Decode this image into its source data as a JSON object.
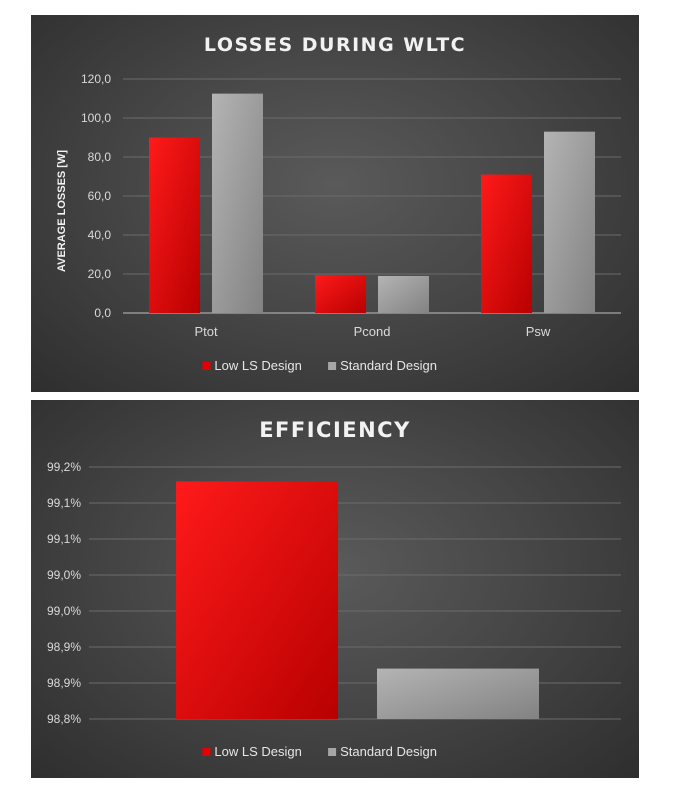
{
  "colors": {
    "low_ls": "#e60000",
    "standard": "#a6a6a6",
    "background": "#404040",
    "grid": "#6b6b6b"
  },
  "chart_data": [
    {
      "type": "bar",
      "title": "LOSSES DURING WLTC",
      "xlabel": "",
      "ylabel": "AVERAGE LOSSES [W]",
      "categories": [
        "Ptot",
        "Pcond",
        "Psw"
      ],
      "series": [
        {
          "name": "Low LS Design",
          "values": [
            90.0,
            19.5,
            71.0
          ]
        },
        {
          "name": "Standard Design",
          "values": [
            112.5,
            19.0,
            93.0
          ]
        }
      ],
      "ylim": [
        0,
        120
      ],
      "yticks": [
        "0,0",
        "20,0",
        "40,0",
        "60,0",
        "80,0",
        "100,0",
        "120,0"
      ],
      "grid": true,
      "legend": "bottom"
    },
    {
      "type": "bar",
      "title": "EFFICIENCY",
      "xlabel": "",
      "ylabel": "",
      "categories": [
        ""
      ],
      "series": [
        {
          "name": "Low LS Design",
          "values": [
            99.13
          ]
        },
        {
          "name": "Standard Design",
          "values": [
            98.87
          ]
        }
      ],
      "ylim": [
        98.8,
        99.15
      ],
      "yticks": [
        "98,8%",
        "98,9%",
        "98,9%",
        "99,0%",
        "99,0%",
        "99,1%",
        "99,1%",
        "99,2%"
      ],
      "grid": true,
      "legend": "bottom"
    }
  ]
}
